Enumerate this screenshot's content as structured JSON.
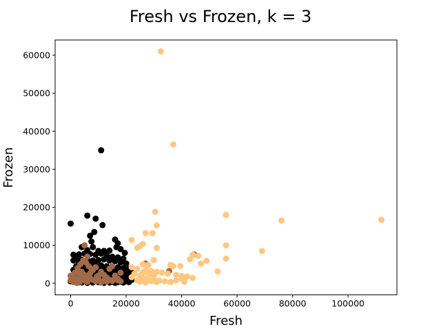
{
  "chart_data": {
    "type": "scatter",
    "title": "Fresh vs Frozen, k = 3",
    "xlabel": "Fresh",
    "ylabel": "Frozen",
    "xlim": [
      -5600,
      117600
    ],
    "ylim": [
      -3050,
      64000
    ],
    "xticks": [
      0,
      20000,
      40000,
      60000,
      80000,
      100000
    ],
    "yticks": [
      0,
      10000,
      20000,
      30000,
      40000,
      50000,
      60000
    ],
    "grid": false,
    "legend": "none",
    "series": [
      {
        "color": "#000000",
        "points": [
          [
            11000,
            35000
          ],
          [
            0,
            15700
          ],
          [
            6000,
            17800
          ],
          [
            9000,
            17000
          ],
          [
            11500,
            15300
          ],
          [
            8500,
            13500
          ],
          [
            7000,
            12500
          ],
          [
            7500,
            11000
          ],
          [
            16000,
            11500
          ],
          [
            17000,
            10500
          ],
          [
            16500,
            9500
          ],
          [
            18000,
            9000
          ],
          [
            19500,
            8000
          ],
          [
            4000,
            9500
          ],
          [
            8000,
            9500
          ],
          [
            10000,
            8500
          ],
          [
            12000,
            8500
          ],
          [
            14000,
            8600
          ],
          [
            6000,
            8700
          ],
          [
            1000,
            7500
          ],
          [
            3000,
            7600
          ],
          [
            5000,
            7800
          ],
          [
            7000,
            7700
          ],
          [
            9000,
            7500
          ],
          [
            11000,
            7800
          ],
          [
            13000,
            7300
          ],
          [
            15000,
            7000
          ],
          [
            17000,
            6800
          ],
          [
            19000,
            6500
          ],
          [
            2000,
            6500
          ],
          [
            4000,
            6200
          ],
          [
            6000,
            6300
          ],
          [
            8000,
            6000
          ],
          [
            10000,
            6100
          ],
          [
            12000,
            6300
          ],
          [
            14000,
            6000
          ],
          [
            16000,
            5800
          ],
          [
            18000,
            5500
          ],
          [
            20000,
            5200
          ],
          [
            1000,
            6000
          ],
          [
            3000,
            5500
          ],
          [
            5000,
            5200
          ],
          [
            7000,
            5000
          ],
          [
            9000,
            4800
          ],
          [
            11000,
            4700
          ],
          [
            13000,
            4500
          ],
          [
            15000,
            4300
          ],
          [
            17000,
            4200
          ],
          [
            19000,
            4000
          ],
          [
            21000,
            3800
          ],
          [
            2000,
            4500
          ],
          [
            4000,
            4000
          ],
          [
            6000,
            3800
          ],
          [
            8000,
            3600
          ],
          [
            10000,
            3500
          ],
          [
            12000,
            3400
          ],
          [
            14000,
            3300
          ],
          [
            16000,
            3200
          ],
          [
            18000,
            3100
          ],
          [
            20000,
            3000
          ],
          [
            22000,
            2800
          ],
          [
            1000,
            3500
          ],
          [
            3000,
            3000
          ],
          [
            5000,
            2800
          ],
          [
            7000,
            2600
          ],
          [
            9000,
            2500
          ],
          [
            11000,
            2400
          ],
          [
            13000,
            2300
          ],
          [
            15000,
            2200
          ],
          [
            17000,
            2100
          ],
          [
            19000,
            2000
          ],
          [
            21000,
            1900
          ],
          [
            2000,
            2000
          ],
          [
            4000,
            1800
          ],
          [
            6000,
            1700
          ],
          [
            8000,
            1600
          ],
          [
            10000,
            1500
          ],
          [
            12000,
            1400
          ],
          [
            14000,
            1300
          ],
          [
            16000,
            1200
          ],
          [
            18000,
            1100
          ],
          [
            20000,
            1000
          ],
          [
            22000,
            900
          ],
          [
            1000,
            1200
          ],
          [
            3000,
            1000
          ],
          [
            5000,
            900
          ],
          [
            7000,
            800
          ],
          [
            9000,
            700
          ],
          [
            11000,
            600
          ],
          [
            13000,
            500
          ],
          [
            15000,
            400
          ],
          [
            17000,
            300
          ],
          [
            19000,
            200
          ],
          [
            21000,
            300
          ],
          [
            0,
            500
          ],
          [
            2000,
            300
          ],
          [
            4000,
            200
          ],
          [
            6000,
            100
          ],
          [
            8000,
            200
          ],
          [
            10000,
            300
          ],
          [
            12000,
            100
          ],
          [
            14000,
            200
          ],
          [
            16000,
            100
          ],
          [
            18000,
            400
          ],
          [
            20000,
            500
          ]
        ]
      },
      {
        "color": "#a06a48",
        "points": [
          [
            5000,
            10000
          ],
          [
            6000,
            7000
          ],
          [
            44500,
            7600
          ],
          [
            35500,
            3200
          ],
          [
            27000,
            5200
          ],
          [
            0,
            2000
          ],
          [
            1000,
            1500
          ],
          [
            2000,
            1200
          ],
          [
            3000,
            2500
          ],
          [
            4000,
            3000
          ],
          [
            5000,
            2200
          ],
          [
            6000,
            1800
          ],
          [
            7000,
            2600
          ],
          [
            8000,
            3500
          ],
          [
            9000,
            4200
          ],
          [
            10000,
            2000
          ],
          [
            11000,
            3000
          ],
          [
            12000,
            2200
          ],
          [
            13000,
            1500
          ],
          [
            14000,
            3800
          ],
          [
            15000,
            4500
          ],
          [
            16000,
            2000
          ],
          [
            17000,
            1200
          ],
          [
            18000,
            2800
          ],
          [
            0,
            800
          ],
          [
            1000,
            300
          ],
          [
            2000,
            600
          ],
          [
            3000,
            900
          ],
          [
            4000,
            1100
          ],
          [
            5000,
            700
          ],
          [
            6000,
            400
          ],
          [
            7000,
            1300
          ],
          [
            8000,
            900
          ],
          [
            9000,
            500
          ],
          [
            10000,
            1100
          ],
          [
            11000,
            200
          ],
          [
            12000,
            700
          ],
          [
            13000,
            400
          ],
          [
            14000,
            900
          ],
          [
            15000,
            600
          ],
          [
            16000,
            1400
          ],
          [
            17000,
            800
          ],
          [
            18000,
            500
          ],
          [
            2500,
            4000
          ],
          [
            3500,
            5000
          ],
          [
            4500,
            6000
          ],
          [
            5500,
            5500
          ],
          [
            6500,
            4500
          ],
          [
            7500,
            3800
          ],
          [
            1500,
            2800
          ],
          [
            500,
            1600
          ],
          [
            2200,
            100
          ],
          [
            3200,
            200
          ],
          [
            4200,
            1500
          ],
          [
            9500,
            1800
          ]
        ]
      },
      {
        "color": "#ffc77f",
        "points": [
          [
            32500,
            61000
          ],
          [
            37000,
            36500
          ],
          [
            30500,
            18800
          ],
          [
            56000,
            18000
          ],
          [
            76000,
            16500
          ],
          [
            112000,
            16700
          ],
          [
            31000,
            15200
          ],
          [
            27000,
            13200
          ],
          [
            29500,
            13200
          ],
          [
            22000,
            11400
          ],
          [
            26000,
            10300
          ],
          [
            25000,
            9800
          ],
          [
            24000,
            9300
          ],
          [
            31000,
            9300
          ],
          [
            56000,
            10000
          ],
          [
            69000,
            8500
          ],
          [
            44000,
            7500
          ],
          [
            46000,
            7200
          ],
          [
            56000,
            6500
          ],
          [
            49000,
            5900
          ],
          [
            43000,
            6300
          ],
          [
            47000,
            5200
          ],
          [
            30000,
            6100
          ],
          [
            26000,
            5000
          ],
          [
            28000,
            4800
          ],
          [
            36000,
            4800
          ],
          [
            37000,
            4500
          ],
          [
            39500,
            4500
          ],
          [
            22000,
            4200
          ],
          [
            24000,
            3800
          ],
          [
            27000,
            3500
          ],
          [
            29000,
            3200
          ],
          [
            31000,
            3000
          ],
          [
            33000,
            2800
          ],
          [
            35000,
            2500
          ],
          [
            38000,
            2200
          ],
          [
            40000,
            1900
          ],
          [
            42000,
            1800
          ],
          [
            44000,
            1400
          ],
          [
            53000,
            3100
          ],
          [
            23000,
            2500
          ],
          [
            25000,
            2000
          ],
          [
            26000,
            1500
          ],
          [
            28000,
            1200
          ],
          [
            30000,
            900
          ],
          [
            32000,
            700
          ],
          [
            34000,
            500
          ],
          [
            36000,
            300
          ],
          [
            38000,
            800
          ],
          [
            40000,
            1200
          ],
          [
            41000,
            400
          ],
          [
            25000,
            400
          ],
          [
            27000,
            200
          ],
          [
            29000,
            600
          ],
          [
            31000,
            300
          ],
          [
            24000,
            800
          ],
          [
            22000,
            1600
          ],
          [
            26000,
            2800
          ],
          [
            28000,
            2400
          ],
          [
            30000,
            2000
          ]
        ]
      }
    ]
  }
}
